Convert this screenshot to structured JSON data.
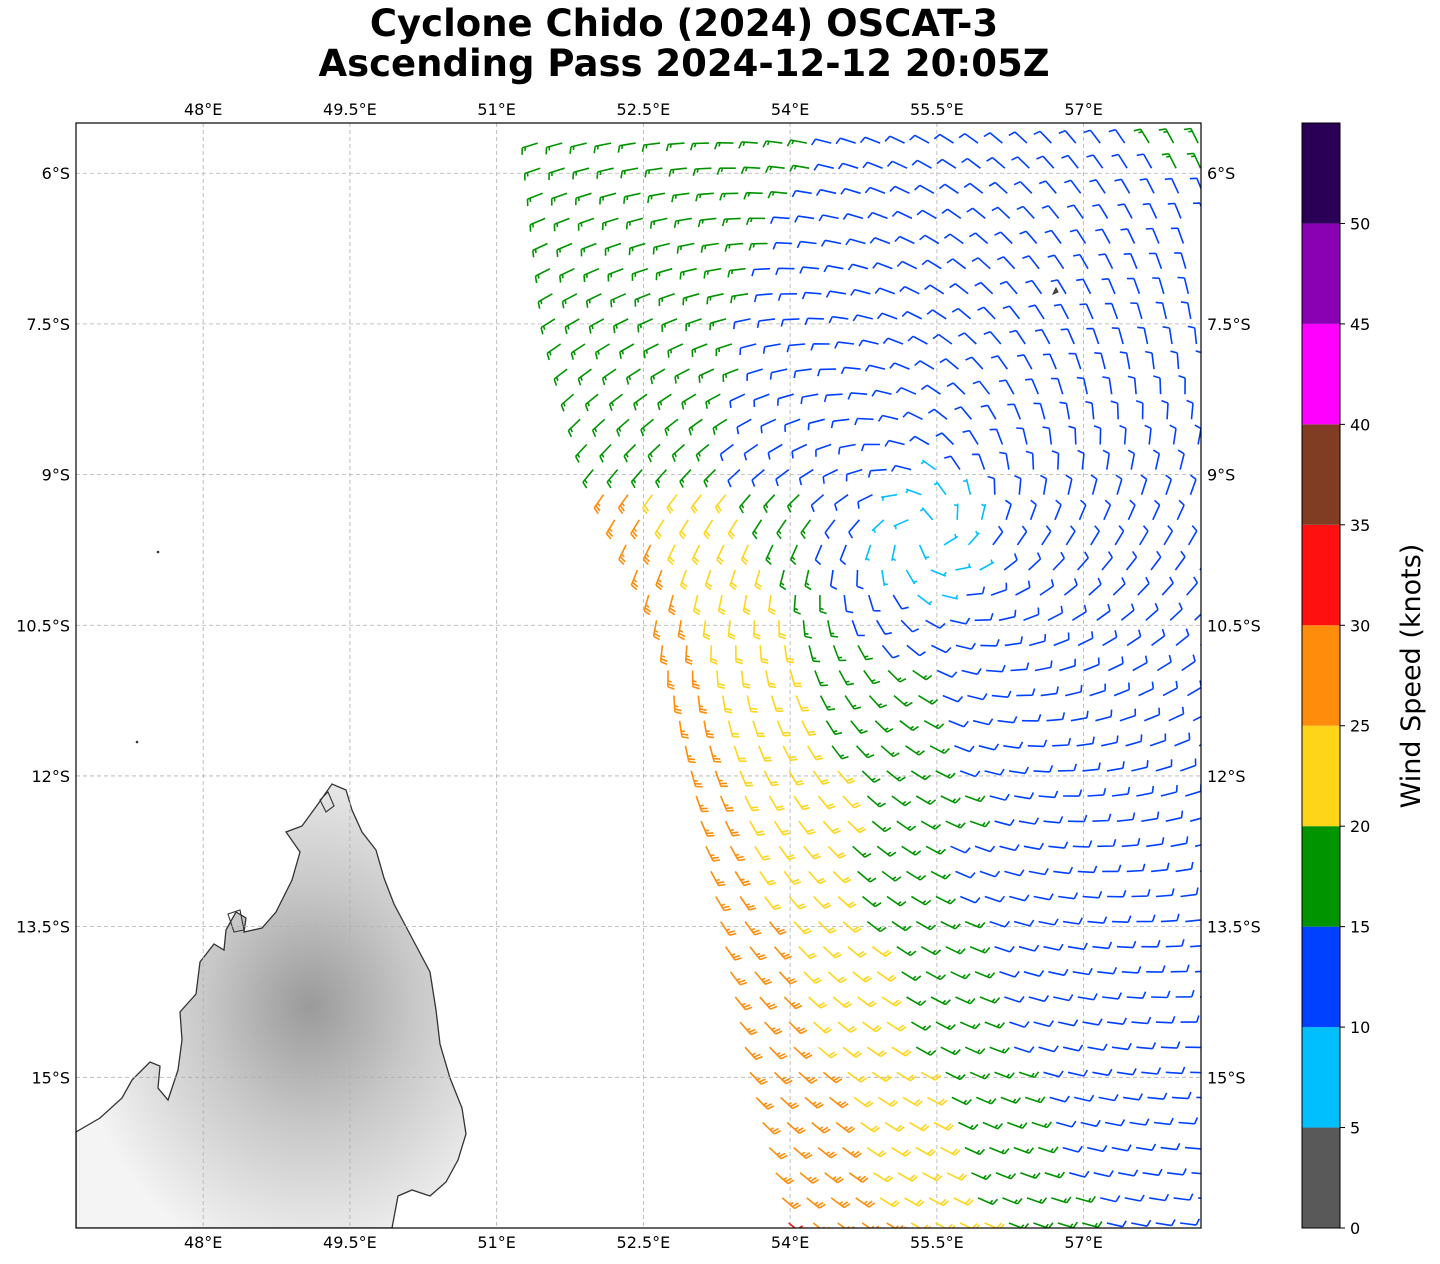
{
  "title": {
    "line1": "Cyclone Chido (2024) OSCAT-3",
    "line2": "Ascending Pass 2024-12-12 20:05Z"
  },
  "map": {
    "lon_range": [
      46.7,
      58.2
    ],
    "lat_range": [
      -16.5,
      -5.5
    ],
    "lon_ticks": [
      {
        "value": 48.0,
        "label": "48°E"
      },
      {
        "value": 49.5,
        "label": "49.5°E"
      },
      {
        "value": 51.0,
        "label": "51°E"
      },
      {
        "value": 52.5,
        "label": "52.5°E"
      },
      {
        "value": 54.0,
        "label": "54°E"
      },
      {
        "value": 55.5,
        "label": "55.5°E"
      },
      {
        "value": 57.0,
        "label": "57°E"
      }
    ],
    "lat_ticks": [
      {
        "value": -6.0,
        "label": "6°S"
      },
      {
        "value": -7.5,
        "label": "7.5°S"
      },
      {
        "value": -9.0,
        "label": "9°S"
      },
      {
        "value": -10.5,
        "label": "10.5°S"
      },
      {
        "value": -12.0,
        "label": "12°S"
      },
      {
        "value": -13.5,
        "label": "13.5°S"
      },
      {
        "value": -15.0,
        "label": "15°S"
      }
    ],
    "gridlines": true,
    "landmass": "Madagascar (northern tip)",
    "colors": {
      "land_light": "#f7f7f7",
      "land_dark": "#9a9a9a",
      "coast": "#333333"
    }
  },
  "chart_data": {
    "type": "wind_barbs",
    "cyclone_center": {
      "lon": 55.4,
      "lat": -9.6
    },
    "swath_west_edge": [
      {
        "lat": -5.5,
        "lon": 51.4
      },
      {
        "lat": -7.5,
        "lon": 51.6
      },
      {
        "lat": -9.0,
        "lon": 52.0
      },
      {
        "lat": -10.3,
        "lon": 52.6
      },
      {
        "lat": -12.0,
        "lon": 53.0
      },
      {
        "lat": -13.5,
        "lon": 53.3
      },
      {
        "lat": -15.0,
        "lon": 53.6
      },
      {
        "lat": -16.5,
        "lon": 54.0
      }
    ],
    "units": "knots"
  },
  "colorbar": {
    "label": "Wind Speed (knots)",
    "bins": [
      {
        "from": 0,
        "to": 5,
        "color": "#595959"
      },
      {
        "from": 5,
        "to": 10,
        "color": "#00bfff"
      },
      {
        "from": 10,
        "to": 15,
        "color": "#0040ff"
      },
      {
        "from": 15,
        "to": 20,
        "color": "#009400"
      },
      {
        "from": 20,
        "to": 25,
        "color": "#ffd51a"
      },
      {
        "from": 25,
        "to": 30,
        "color": "#ff8c0a"
      },
      {
        "from": 30,
        "to": 35,
        "color": "#ff1010"
      },
      {
        "from": 35,
        "to": 40,
        "color": "#803d24"
      },
      {
        "from": 40,
        "to": 45,
        "color": "#ff00ff"
      },
      {
        "from": 45,
        "to": 50,
        "color": "#8a00b3"
      },
      {
        "from": 50,
        "to": 55,
        "color": "#2a0057"
      }
    ],
    "ticks": [
      "0",
      "5",
      "10",
      "15",
      "20",
      "25",
      "30",
      "35",
      "40",
      "45",
      "50"
    ]
  }
}
